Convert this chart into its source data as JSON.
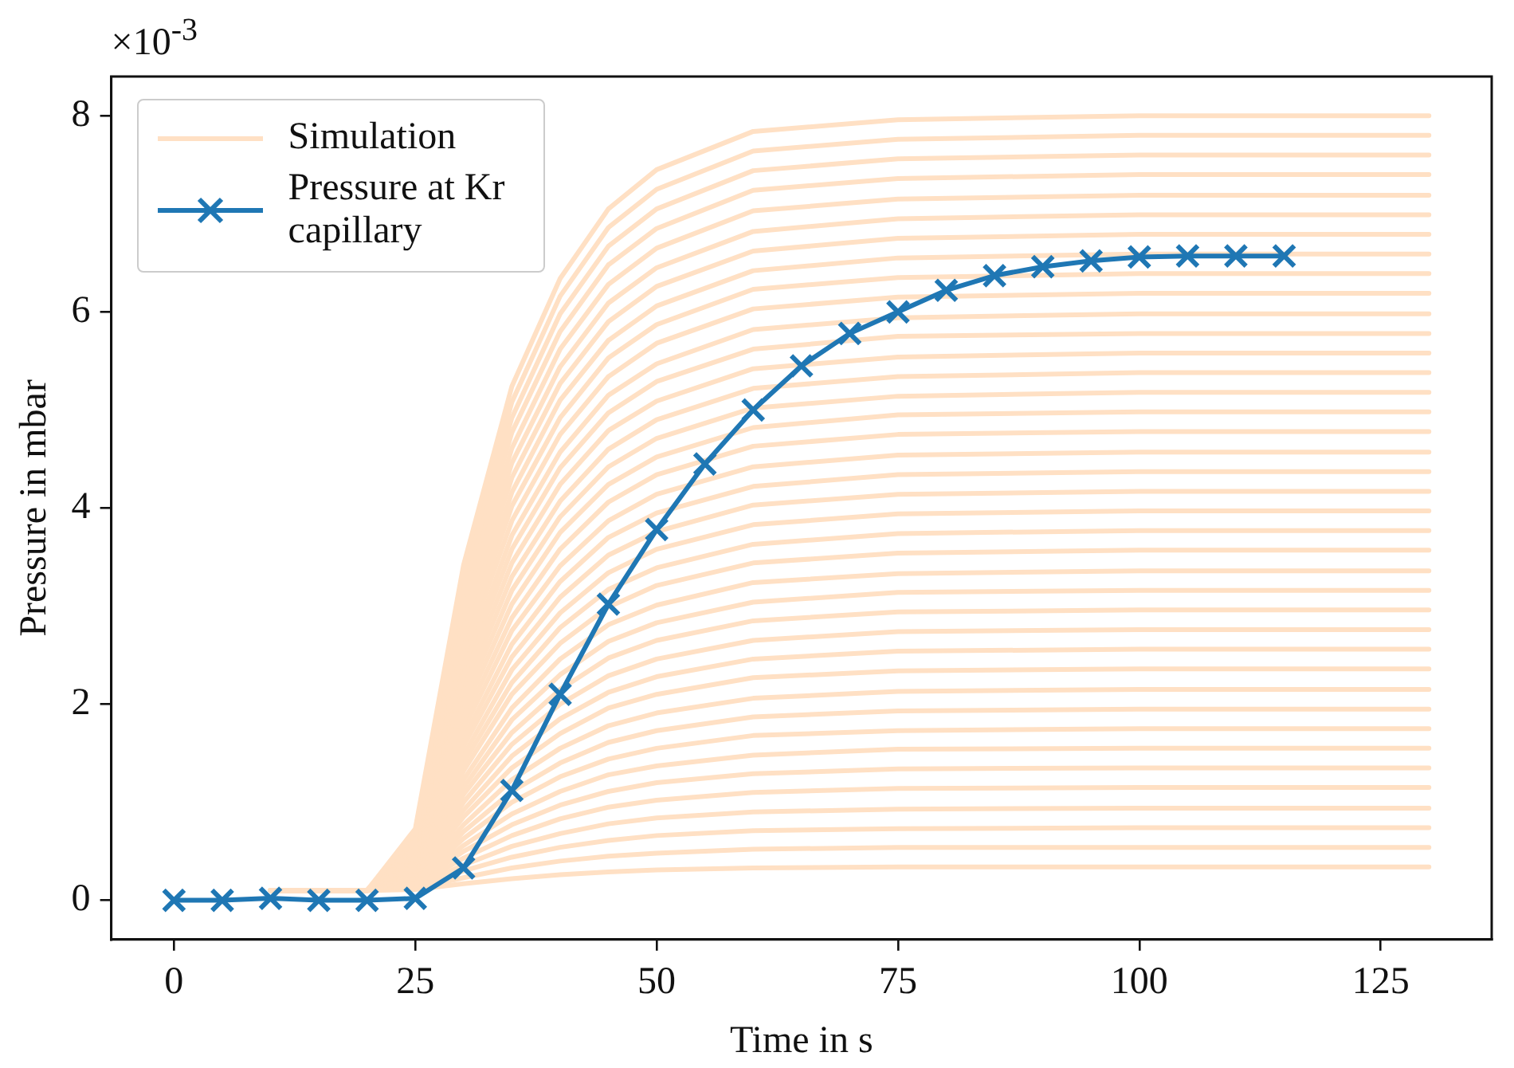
{
  "chart_data": {
    "type": "line",
    "xlabel": "Time in s",
    "ylabel": "Pressure in mbar",
    "annotations": [
      "×10$^{-3}$"
    ],
    "x": [
      10,
      20,
      25,
      30,
      35,
      40,
      45,
      50,
      60,
      75,
      100,
      130
    ],
    "xlim": [
      -6.5,
      136.5
    ],
    "xticks": [
      0,
      25,
      50,
      75,
      100,
      125
    ],
    "ylim": [
      -0.4,
      8.4
    ],
    "yticks": [
      0,
      2,
      4,
      6,
      8
    ],
    "legend": "top left",
    "series": [
      {
        "name": "Simulation",
        "color": "#ffe0c4",
        "marker": "none",
        "values": [
          0.1,
          0.1,
          0.11,
          0.17,
          0.22,
          0.26,
          0.29,
          0.31,
          0.33,
          0.34,
          0.34,
          0.34
        ]
      },
      {
        "color": "#ffe0c4",
        "marker": "none",
        "values": [
          0.1,
          0.1,
          0.12,
          0.23,
          0.33,
          0.4,
          0.45,
          0.48,
          0.52,
          0.54,
          0.54,
          0.54
        ]
      },
      {
        "color": "#ffe0c4",
        "marker": "none",
        "values": [
          0.1,
          0.1,
          0.13,
          0.3,
          0.44,
          0.54,
          0.61,
          0.66,
          0.71,
          0.73,
          0.74,
          0.74
        ]
      },
      {
        "color": "#ffe0c4",
        "marker": "none",
        "values": [
          0.1,
          0.1,
          0.14,
          0.36,
          0.55,
          0.68,
          0.78,
          0.84,
          0.9,
          0.93,
          0.94,
          0.94
        ]
      },
      {
        "color": "#ffe0c4",
        "marker": "none",
        "values": [
          0.1,
          0.1,
          0.15,
          0.43,
          0.66,
          0.83,
          0.95,
          1.02,
          1.1,
          1.14,
          1.15,
          1.15
        ]
      },
      {
        "color": "#ffe0c4",
        "marker": "none",
        "values": [
          0.1,
          0.1,
          0.16,
          0.5,
          0.77,
          0.97,
          1.11,
          1.2,
          1.29,
          1.34,
          1.35,
          1.35
        ]
      },
      {
        "color": "#ffe0c4",
        "marker": "none",
        "values": [
          0.1,
          0.1,
          0.17,
          0.56,
          0.88,
          1.11,
          1.28,
          1.37,
          1.48,
          1.54,
          1.55,
          1.55
        ]
      },
      {
        "color": "#ffe0c4",
        "marker": "none",
        "values": [
          0.1,
          0.1,
          0.18,
          0.63,
          1.0,
          1.26,
          1.44,
          1.55,
          1.68,
          1.73,
          1.75,
          1.75
        ]
      },
      {
        "color": "#ffe0c4",
        "marker": "none",
        "values": [
          0.1,
          0.1,
          0.19,
          0.7,
          1.11,
          1.4,
          1.61,
          1.73,
          1.87,
          1.93,
          1.95,
          1.95
        ]
      },
      {
        "color": "#ffe0c4",
        "marker": "none",
        "values": [
          0.1,
          0.1,
          0.2,
          0.77,
          1.23,
          1.55,
          1.78,
          1.91,
          2.06,
          2.13,
          2.15,
          2.15
        ]
      },
      {
        "color": "#ffe0c4",
        "marker": "none",
        "values": [
          0.1,
          0.1,
          0.22,
          0.85,
          1.35,
          1.7,
          1.96,
          2.1,
          2.27,
          2.34,
          2.36,
          2.36
        ]
      },
      {
        "color": "#ffe0c4",
        "marker": "none",
        "values": [
          0.1,
          0.1,
          0.23,
          0.92,
          1.47,
          1.85,
          2.12,
          2.28,
          2.46,
          2.54,
          2.56,
          2.56
        ]
      },
      {
        "color": "#ffe0c4",
        "marker": "none",
        "values": [
          0.1,
          0.1,
          0.24,
          1.0,
          1.59,
          2.0,
          2.29,
          2.46,
          2.65,
          2.74,
          2.76,
          2.76
        ]
      },
      {
        "color": "#ffe0c4",
        "marker": "none",
        "values": [
          0.1,
          0.1,
          0.25,
          1.08,
          1.71,
          2.15,
          2.47,
          2.65,
          2.85,
          2.94,
          2.96,
          2.96
        ]
      },
      {
        "color": "#ffe0c4",
        "marker": "none",
        "values": [
          0.1,
          0.1,
          0.27,
          1.15,
          1.84,
          2.3,
          2.64,
          2.83,
          3.04,
          3.14,
          3.16,
          3.16
        ]
      },
      {
        "color": "#ffe0c4",
        "marker": "none",
        "values": [
          0.1,
          0.1,
          0.28,
          1.23,
          1.96,
          2.46,
          2.81,
          3.01,
          3.24,
          3.33,
          3.36,
          3.36
        ]
      },
      {
        "color": "#ffe0c4",
        "marker": "none",
        "values": [
          0.1,
          0.1,
          0.3,
          1.32,
          2.1,
          2.62,
          2.99,
          3.21,
          3.44,
          3.54,
          3.57,
          3.57
        ]
      },
      {
        "color": "#ffe0c4",
        "marker": "none",
        "values": [
          0.1,
          0.1,
          0.31,
          1.4,
          2.22,
          2.78,
          3.17,
          3.39,
          3.63,
          3.74,
          3.77,
          3.77
        ]
      },
      {
        "color": "#ffe0c4",
        "marker": "none",
        "values": [
          0.1,
          0.1,
          0.33,
          1.48,
          2.35,
          2.93,
          3.34,
          3.58,
          3.83,
          3.94,
          3.97,
          3.97
        ]
      },
      {
        "color": "#ffe0c4",
        "marker": "none",
        "values": [
          0.1,
          0.1,
          0.34,
          1.57,
          2.48,
          3.09,
          3.52,
          3.76,
          4.03,
          4.14,
          4.17,
          4.17
        ]
      },
      {
        "color": "#ffe0c4",
        "marker": "none",
        "values": [
          0.1,
          0.1,
          0.36,
          1.65,
          2.61,
          3.25,
          3.7,
          3.95,
          4.22,
          4.34,
          4.37,
          4.37
        ]
      },
      {
        "color": "#ffe0c4",
        "marker": "none",
        "values": [
          0.1,
          0.1,
          0.38,
          1.74,
          2.75,
          3.41,
          3.87,
          4.14,
          4.42,
          4.54,
          4.57,
          4.57
        ]
      },
      {
        "color": "#ffe0c4",
        "marker": "none",
        "values": [
          0.1,
          0.1,
          0.39,
          1.83,
          2.88,
          3.58,
          4.06,
          4.34,
          4.63,
          4.75,
          4.78,
          4.78
        ]
      },
      {
        "color": "#ffe0c4",
        "marker": "none",
        "values": [
          0.1,
          0.1,
          0.41,
          1.92,
          3.02,
          3.75,
          4.24,
          4.52,
          4.82,
          4.95,
          4.98,
          4.98
        ]
      },
      {
        "color": "#ffe0c4",
        "marker": "none",
        "values": [
          0.1,
          0.1,
          0.43,
          2.01,
          3.16,
          3.91,
          4.42,
          4.71,
          5.02,
          5.14,
          5.18,
          5.18
        ]
      },
      {
        "color": "#ffe0c4",
        "marker": "none",
        "values": [
          0.1,
          0.1,
          0.45,
          2.1,
          3.3,
          4.07,
          4.6,
          4.9,
          5.22,
          5.34,
          5.38,
          5.38
        ]
      },
      {
        "color": "#ffe0c4",
        "marker": "none",
        "values": [
          0.1,
          0.1,
          0.47,
          2.19,
          3.44,
          4.24,
          4.79,
          5.09,
          5.42,
          5.54,
          5.58,
          5.58
        ]
      },
      {
        "color": "#ffe0c4",
        "marker": "none",
        "values": [
          0.1,
          0.1,
          0.49,
          2.29,
          3.58,
          4.41,
          4.97,
          5.29,
          5.62,
          5.75,
          5.78,
          5.78
        ]
      },
      {
        "color": "#ffe0c4",
        "marker": "none",
        "values": [
          0.1,
          0.1,
          0.51,
          2.38,
          3.72,
          4.57,
          5.15,
          5.47,
          5.82,
          5.94,
          5.98,
          5.98
        ]
      },
      {
        "color": "#ffe0c4",
        "marker": "none",
        "values": [
          0.1,
          0.1,
          0.53,
          2.49,
          3.87,
          4.75,
          5.34,
          5.68,
          6.03,
          6.15,
          6.19,
          6.19
        ]
      },
      {
        "color": "#ffe0c4",
        "marker": "none",
        "values": [
          0.1,
          0.1,
          0.55,
          2.58,
          4.02,
          4.92,
          5.53,
          5.87,
          6.23,
          6.35,
          6.39,
          6.39
        ]
      },
      {
        "color": "#ffe0c4",
        "marker": "none",
        "values": [
          0.1,
          0.1,
          0.57,
          2.68,
          4.16,
          5.1,
          5.71,
          6.06,
          6.42,
          6.55,
          6.59,
          6.59
        ]
      },
      {
        "color": "#ffe0c4",
        "marker": "none",
        "values": [
          0.1,
          0.1,
          0.6,
          2.78,
          4.31,
          5.27,
          5.9,
          6.26,
          6.62,
          6.75,
          6.79,
          6.79
        ]
      },
      {
        "color": "#ffe0c4",
        "marker": "none",
        "values": [
          0.1,
          0.1,
          0.62,
          2.88,
          4.46,
          5.44,
          6.09,
          6.45,
          6.82,
          6.95,
          6.99,
          6.99
        ]
      },
      {
        "color": "#ffe0c4",
        "marker": "none",
        "values": [
          0.1,
          0.1,
          0.64,
          2.99,
          4.61,
          5.62,
          6.28,
          6.65,
          7.03,
          7.15,
          7.19,
          7.19
        ]
      },
      {
        "color": "#ffe0c4",
        "marker": "none",
        "values": [
          0.1,
          0.1,
          0.66,
          3.1,
          4.77,
          5.8,
          6.48,
          6.85,
          7.24,
          7.36,
          7.4,
          7.4
        ]
      },
      {
        "color": "#ffe0c4",
        "marker": "none",
        "values": [
          0.1,
          0.1,
          0.69,
          3.21,
          4.92,
          5.98,
          6.67,
          7.05,
          7.44,
          7.56,
          7.6,
          7.6
        ]
      },
      {
        "color": "#ffe0c4",
        "marker": "none",
        "values": [
          0.1,
          0.1,
          0.71,
          3.31,
          5.08,
          6.16,
          6.86,
          7.25,
          7.64,
          7.76,
          7.8,
          7.8
        ]
      },
      {
        "color": "#ffe0c4",
        "marker": "none",
        "values": [
          0.1,
          0.1,
          0.73,
          3.42,
          5.24,
          6.34,
          7.05,
          7.45,
          7.84,
          7.96,
          8.0,
          8.0
        ]
      },
      {
        "name": "Pressure at Kr capillary",
        "color": "#1f77b4",
        "marker": "cross",
        "x": [
          0,
          5,
          10,
          15,
          20,
          25,
          30,
          35,
          40,
          45,
          50,
          55,
          60,
          65,
          70,
          75,
          80,
          85,
          90,
          95,
          100,
          105,
          110,
          115
        ],
        "values": [
          0,
          0,
          0.02,
          0,
          0,
          0.02,
          0.33,
          1.12,
          2.1,
          3.02,
          3.78,
          4.45,
          5.0,
          5.45,
          5.78,
          6.0,
          6.22,
          6.37,
          6.46,
          6.52,
          6.56,
          6.57,
          6.57,
          6.57
        ]
      }
    ]
  }
}
